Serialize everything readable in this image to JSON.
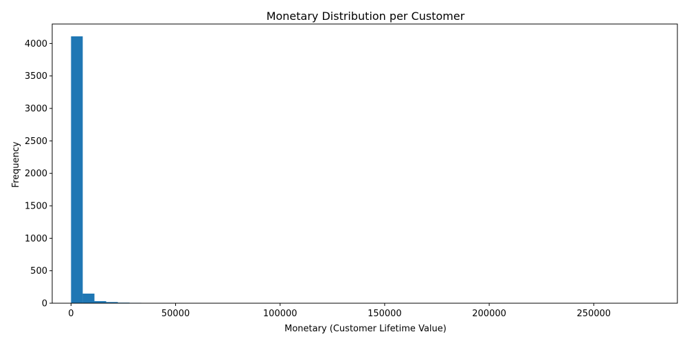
{
  "chart_data": {
    "type": "bar",
    "title": "Monetary Distribution per Customer",
    "xlabel": "Monetary (Customer Lifetime Value)",
    "ylabel": "Frequency",
    "xlim": [
      -9000,
      290000
    ],
    "ylim": [
      0,
      4300
    ],
    "xticks": [
      0,
      50000,
      100000,
      150000,
      200000,
      250000
    ],
    "yticks": [
      0,
      500,
      1000,
      1500,
      2000,
      2500,
      3000,
      3500,
      4000
    ],
    "bin_start": 0,
    "bin_width": 5600,
    "values": [
      4110,
      148,
      32,
      18,
      9,
      6,
      4,
      3,
      0,
      5,
      5,
      4,
      0,
      0,
      0,
      0,
      0,
      0,
      0,
      0,
      0,
      0,
      0,
      0,
      0,
      0,
      0,
      0,
      0,
      0,
      0,
      0,
      0,
      0,
      0,
      0,
      0,
      0,
      0,
      0,
      0,
      0,
      0,
      0,
      0,
      0,
      0,
      0,
      0,
      1
    ],
    "grid": false,
    "bar_color": "#1f77b4"
  }
}
